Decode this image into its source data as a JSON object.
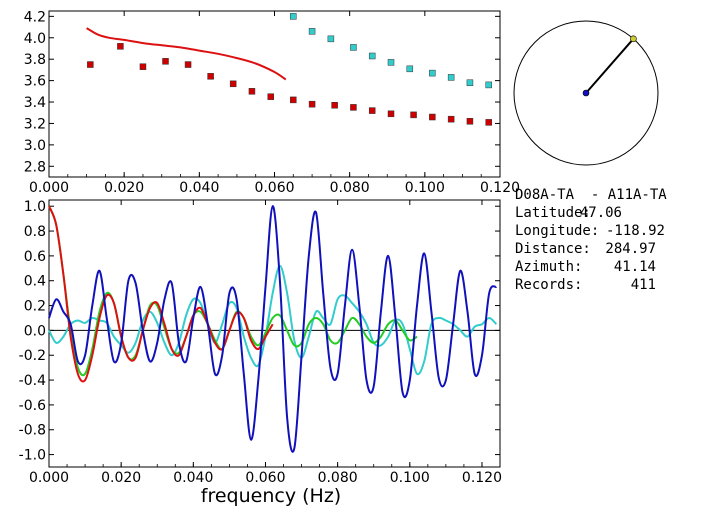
{
  "chart_data": [
    {
      "type": "scatter",
      "panel": "phase-velocity",
      "xlim": [
        0.0,
        0.12
      ],
      "ylim": [
        2.7,
        4.25
      ],
      "xticks": [
        "0.000",
        "0.020",
        "0.040",
        "0.060",
        "0.080",
        "0.100",
        "0.120"
      ],
      "yticks": [
        "2.8",
        "3.0",
        "3.2",
        "3.4",
        "3.6",
        "3.8",
        "4.0",
        "4.2"
      ],
      "grid": false,
      "series": [
        {
          "kind": "points",
          "color": "#cc0000",
          "points": [
            [
              0.011,
              3.75
            ],
            [
              0.019,
              3.92
            ],
            [
              0.025,
              3.73
            ],
            [
              0.031,
              3.78
            ],
            [
              0.037,
              3.75
            ],
            [
              0.043,
              3.64
            ],
            [
              0.049,
              3.57
            ],
            [
              0.054,
              3.5
            ],
            [
              0.059,
              3.45
            ],
            [
              0.065,
              3.42
            ],
            [
              0.07,
              3.38
            ],
            [
              0.076,
              3.37
            ],
            [
              0.081,
              3.35
            ],
            [
              0.086,
              3.32
            ],
            [
              0.091,
              3.29
            ],
            [
              0.097,
              3.28
            ],
            [
              0.102,
              3.26
            ],
            [
              0.107,
              3.24
            ],
            [
              0.112,
              3.22
            ],
            [
              0.117,
              3.21
            ]
          ]
        },
        {
          "kind": "points",
          "color": "#33cccc",
          "points": [
            [
              0.065,
              4.2
            ],
            [
              0.07,
              4.06
            ],
            [
              0.075,
              3.99
            ],
            [
              0.081,
              3.91
            ],
            [
              0.086,
              3.83
            ],
            [
              0.091,
              3.77
            ],
            [
              0.096,
              3.71
            ],
            [
              0.102,
              3.67
            ],
            [
              0.107,
              3.63
            ],
            [
              0.112,
              3.58
            ],
            [
              0.117,
              3.56
            ]
          ]
        },
        {
          "kind": "line",
          "color": "#dd1111",
          "points": [
            [
              0.01,
              4.09
            ],
            [
              0.013,
              4.03
            ],
            [
              0.016,
              4.0
            ],
            [
              0.02,
              3.98
            ],
            [
              0.025,
              3.95
            ],
            [
              0.03,
              3.93
            ],
            [
              0.035,
              3.91
            ],
            [
              0.04,
              3.88
            ],
            [
              0.045,
              3.85
            ],
            [
              0.05,
              3.81
            ],
            [
              0.055,
              3.76
            ],
            [
              0.06,
              3.68
            ],
            [
              0.063,
              3.61
            ]
          ]
        }
      ]
    },
    {
      "type": "line",
      "panel": "correlation",
      "xlabel": "frequency (Hz)",
      "xlim": [
        0.0,
        0.125
      ],
      "ylim": [
        -1.1,
        1.05
      ],
      "xticks": [
        "0.000",
        "0.020",
        "0.040",
        "0.060",
        "0.080",
        "0.100",
        "0.120"
      ],
      "yticks": [
        "1.0",
        "0.8",
        "0.6",
        "0.4",
        "0.2",
        "0.0",
        "-0.2",
        "-0.4",
        "-0.6",
        "-0.8",
        "-1.0"
      ],
      "grid": false,
      "zero_line": true,
      "series": [
        {
          "color": "#33cccc",
          "x": [
            0.0,
            0.002,
            0.004,
            0.006,
            0.008,
            0.01,
            0.012,
            0.014,
            0.016,
            0.018,
            0.02,
            0.022,
            0.024,
            0.026,
            0.028,
            0.03,
            0.032,
            0.034,
            0.036,
            0.038,
            0.04,
            0.042,
            0.044,
            0.046,
            0.048,
            0.05,
            0.052,
            0.054,
            0.056,
            0.058,
            0.06,
            0.062,
            0.064,
            0.066,
            0.068,
            0.07,
            0.072,
            0.074,
            0.076,
            0.078,
            0.08,
            0.082,
            0.084,
            0.086,
            0.088,
            0.09,
            0.092,
            0.094,
            0.096,
            0.098,
            0.1,
            0.102,
            0.104,
            0.106,
            0.108,
            0.11,
            0.112,
            0.114,
            0.116,
            0.118,
            0.12,
            0.122,
            0.124
          ],
          "y": [
            0.0,
            -0.1,
            -0.05,
            0.05,
            0.08,
            0.06,
            0.1,
            0.08,
            0.06,
            -0.05,
            -0.12,
            -0.18,
            -0.1,
            0.08,
            0.15,
            0.06,
            -0.1,
            -0.2,
            -0.1,
            0.12,
            0.25,
            0.22,
            0.05,
            -0.1,
            0.05,
            0.22,
            0.18,
            -0.05,
            -0.22,
            -0.28,
            -0.05,
            0.3,
            0.52,
            0.3,
            -0.08,
            -0.22,
            -0.05,
            0.15,
            0.1,
            0.05,
            0.25,
            0.28,
            0.22,
            0.15,
            0.05,
            -0.1,
            -0.12,
            -0.05,
            0.08,
            0.05,
            -0.15,
            -0.35,
            -0.25,
            0.05,
            0.1,
            0.08,
            0.05,
            0.0,
            -0.05,
            0.03,
            0.05,
            0.1,
            0.05
          ]
        },
        {
          "color": "#22cc22",
          "x": [
            0.0,
            0.002,
            0.004,
            0.006,
            0.008,
            0.01,
            0.012,
            0.014,
            0.016,
            0.018,
            0.02,
            0.022,
            0.024,
            0.026,
            0.028,
            0.03,
            0.032,
            0.034,
            0.036,
            0.038,
            0.04,
            0.042,
            0.044,
            0.046,
            0.048,
            0.05,
            0.052,
            0.054,
            0.056,
            0.058,
            0.06,
            0.062,
            0.064,
            0.066,
            0.068,
            0.07,
            0.072,
            0.074,
            0.076,
            0.078,
            0.08,
            0.082,
            0.084,
            0.086,
            0.088,
            0.09,
            0.092,
            0.094,
            0.096,
            0.098,
            0.1,
            0.102
          ],
          "y": [
            1.0,
            0.85,
            0.45,
            0.0,
            -0.3,
            -0.35,
            -0.15,
            0.15,
            0.3,
            0.22,
            -0.05,
            -0.22,
            -0.2,
            0.0,
            0.2,
            0.2,
            0.02,
            -0.15,
            -0.18,
            -0.05,
            0.12,
            0.15,
            0.05,
            -0.08,
            -0.15,
            0.0,
            0.15,
            0.1,
            -0.05,
            -0.12,
            -0.02,
            0.1,
            0.12,
            0.0,
            -0.12,
            -0.1,
            0.05,
            0.1,
            0.05,
            -0.08,
            -0.1,
            0.0,
            0.1,
            0.05,
            -0.05,
            -0.1,
            -0.05,
            0.05,
            0.08,
            0.0,
            -0.08,
            -0.05
          ]
        },
        {
          "color": "#dd1111",
          "x": [
            0.0,
            0.002,
            0.004,
            0.006,
            0.008,
            0.01,
            0.012,
            0.014,
            0.016,
            0.018,
            0.02,
            0.022,
            0.024,
            0.026,
            0.028,
            0.03,
            0.032,
            0.034,
            0.036,
            0.038,
            0.04,
            0.042,
            0.044,
            0.046,
            0.048,
            0.05,
            0.052,
            0.054,
            0.056,
            0.058,
            0.06,
            0.062
          ],
          "y": [
            1.0,
            0.85,
            0.45,
            -0.05,
            -0.35,
            -0.4,
            -0.2,
            0.1,
            0.28,
            0.22,
            -0.05,
            -0.22,
            -0.22,
            0.0,
            0.18,
            0.22,
            0.05,
            -0.15,
            -0.2,
            -0.05,
            0.12,
            0.18,
            0.05,
            -0.1,
            -0.15,
            0.0,
            0.14,
            0.1,
            -0.08,
            -0.15,
            -0.05,
            0.05
          ]
        },
        {
          "color": "#1111bb",
          "x": [
            0.0,
            0.002,
            0.004,
            0.006,
            0.008,
            0.01,
            0.012,
            0.014,
            0.016,
            0.018,
            0.02,
            0.022,
            0.024,
            0.026,
            0.028,
            0.03,
            0.032,
            0.034,
            0.036,
            0.038,
            0.04,
            0.042,
            0.044,
            0.046,
            0.048,
            0.05,
            0.052,
            0.054,
            0.056,
            0.058,
            0.06,
            0.062,
            0.064,
            0.066,
            0.068,
            0.07,
            0.072,
            0.074,
            0.076,
            0.078,
            0.08,
            0.082,
            0.084,
            0.086,
            0.088,
            0.09,
            0.092,
            0.094,
            0.096,
            0.098,
            0.1,
            0.102,
            0.104,
            0.106,
            0.108,
            0.11,
            0.112,
            0.114,
            0.116,
            0.118,
            0.12,
            0.122,
            0.124
          ],
          "y": [
            0.1,
            0.25,
            0.15,
            0.05,
            -0.25,
            -0.2,
            0.2,
            0.48,
            0.1,
            -0.25,
            -0.1,
            0.4,
            0.38,
            0.0,
            -0.25,
            -0.1,
            0.25,
            0.38,
            -0.1,
            -0.25,
            0.1,
            0.35,
            0.05,
            -0.35,
            -0.2,
            0.3,
            0.25,
            -0.35,
            -0.88,
            -0.4,
            0.35,
            1.0,
            0.4,
            -0.7,
            -0.95,
            -0.2,
            0.6,
            0.95,
            0.3,
            -0.3,
            -0.35,
            0.2,
            0.65,
            0.2,
            -0.4,
            -0.45,
            0.15,
            0.6,
            0.1,
            -0.5,
            -0.4,
            0.2,
            0.62,
            0.15,
            -0.38,
            -0.4,
            0.05,
            0.48,
            0.15,
            -0.35,
            -0.2,
            0.3,
            0.35
          ]
        }
      ]
    }
  ],
  "info": {
    "pair": "D08A-TA  - A11A-TA",
    "rows": [
      {
        "label": "Latitude:",
        "value": "47.06"
      },
      {
        "label": "Longitude:",
        "value": "-118.92"
      },
      {
        "label": "Distance:",
        "value": "284.97"
      },
      {
        "label": "Azimuth:",
        "value": "41.14"
      },
      {
        "label": "Records:",
        "value": "411"
      }
    ],
    "azimuth_deg": 41.14
  },
  "colors": {
    "red": "#dd1111",
    "cyan": "#33cccc",
    "green": "#22cc22",
    "blue": "#1111bb"
  }
}
